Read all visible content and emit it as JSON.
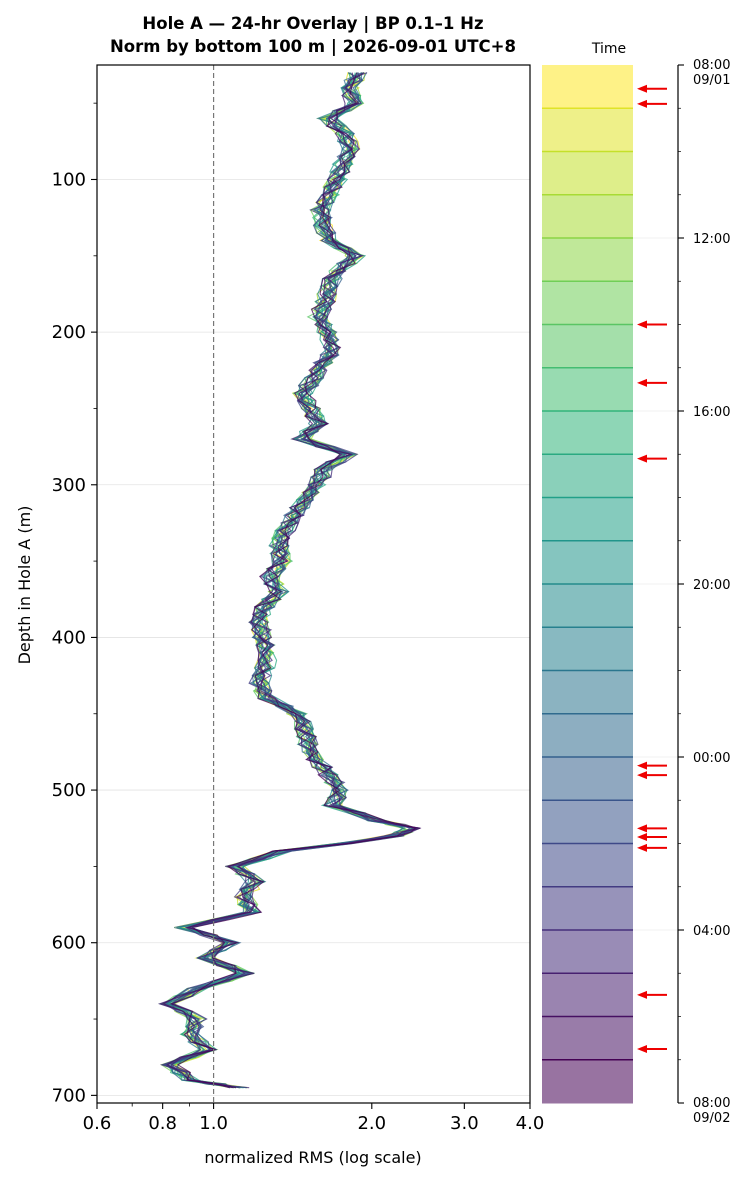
{
  "title_lines": [
    "Hole A — 24-hr Overlay  |  BP 0.1–1 Hz",
    "Norm by bottom 100 m  |  2026-09-01 UTC+8"
  ],
  "chart_data": {
    "type": "line",
    "title": "Hole A — 24-hr Overlay  |  BP 0.1–1 Hz / Norm by bottom 100 m  |  2026-09-01 UTC+8",
    "xlabel": "normalized RMS  (log scale)",
    "ylabel": "Depth in Hole A (m)",
    "x_scale": "log",
    "xlim": [
      0.6,
      4.0
    ],
    "ylim": [
      705,
      25
    ],
    "x_ticks": [
      0.6,
      0.8,
      1.0,
      2.0,
      3.0,
      4.0
    ],
    "x_tick_labels": [
      "0.6",
      "0.8",
      "1.0",
      "2.0",
      "3.0",
      "4.0"
    ],
    "y_ticks": [
      100,
      200,
      300,
      400,
      500,
      600,
      700
    ],
    "y_tick_labels": [
      "100",
      "200",
      "300",
      "400",
      "500",
      "600",
      "700"
    ],
    "reference_line_x": 1.0,
    "grid": "horizontal",
    "series_count": 24,
    "series_colormap": "viridis",
    "mean_profile": {
      "depth": [
        30,
        40,
        50,
        60,
        70,
        80,
        90,
        100,
        110,
        120,
        130,
        140,
        150,
        160,
        170,
        180,
        190,
        200,
        210,
        220,
        230,
        240,
        250,
        260,
        270,
        280,
        290,
        300,
        310,
        320,
        330,
        340,
        350,
        360,
        370,
        380,
        390,
        400,
        410,
        420,
        430,
        440,
        450,
        460,
        470,
        480,
        490,
        500,
        510,
        520,
        525,
        530,
        540,
        550,
        560,
        570,
        580,
        590,
        600,
        610,
        620,
        630,
        640,
        650,
        660,
        670,
        680,
        690,
        695
      ],
      "rms": [
        1.88,
        1.82,
        1.85,
        1.65,
        1.78,
        1.82,
        1.76,
        1.72,
        1.66,
        1.6,
        1.62,
        1.65,
        1.86,
        1.72,
        1.65,
        1.63,
        1.58,
        1.64,
        1.69,
        1.62,
        1.55,
        1.48,
        1.53,
        1.58,
        1.47,
        1.8,
        1.62,
        1.58,
        1.5,
        1.42,
        1.37,
        1.33,
        1.35,
        1.28,
        1.33,
        1.25,
        1.22,
        1.24,
        1.27,
        1.25,
        1.22,
        1.27,
        1.44,
        1.49,
        1.51,
        1.57,
        1.65,
        1.75,
        1.68,
        2.05,
        2.38,
        2.2,
        1.35,
        1.1,
        1.2,
        1.14,
        1.18,
        0.88,
        1.08,
        0.97,
        1.15,
        0.93,
        0.82,
        0.93,
        0.9,
        0.97,
        0.83,
        0.9,
        1.12
      ]
    },
    "colorbar": {
      "label": "Time",
      "tick_labels": [
        "08:00\n09/01",
        "12:00",
        "16:00",
        "20:00",
        "00:00",
        "04:00",
        "08:00\n09/02"
      ],
      "tick_hours": [
        0,
        4,
        8,
        12,
        16,
        20,
        24
      ],
      "range_hours": [
        0,
        24
      ],
      "bands": 24,
      "colormap": "viridis",
      "arrow_markers_hours": [
        0.55,
        0.9,
        6.0,
        7.35,
        9.1,
        16.2,
        16.42,
        17.65,
        17.85,
        18.1,
        21.5,
        22.75
      ]
    }
  }
}
